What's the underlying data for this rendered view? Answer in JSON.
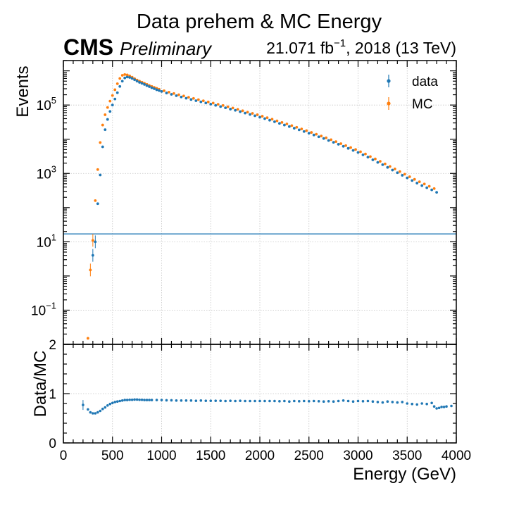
{
  "figure": {
    "title": "Data prehem & MC Energy",
    "experiment": "CMS",
    "status": "Preliminary",
    "lumi_prefix": "21.071 fb",
    "lumi_exp": "−1",
    "lumi_suffix": ", 2018 (13 TeV)"
  },
  "chart_data": [
    {
      "type": "scatter",
      "panel": "main",
      "xlabel": "",
      "ylabel": "Events",
      "yscale": "log",
      "xlim": [
        0,
        4000
      ],
      "ylim": [
        0.01,
        2000000
      ],
      "grid": true,
      "legend_position": "top-right",
      "yticks": [
        {
          "exp": "−1",
          "v": 0.1
        },
        {
          "exp": "1",
          "v": 10
        },
        {
          "exp": "3",
          "v": 1000
        },
        {
          "exp": "5",
          "v": 100000
        }
      ],
      "extra_ytick": {
        "label": "2",
        "v": 0.01
      },
      "hline": 17,
      "colors": {
        "data": "#1f77b4",
        "MC": "#ff7f0e"
      },
      "x": [
        300,
        325,
        350,
        375,
        400,
        425,
        450,
        475,
        500,
        525,
        550,
        575,
        600,
        625,
        650,
        675,
        700,
        725,
        750,
        775,
        800,
        825,
        850,
        875,
        900,
        925,
        950,
        975,
        1000,
        1050,
        1100,
        1150,
        1200,
        1250,
        1300,
        1350,
        1400,
        1450,
        1500,
        1550,
        1600,
        1650,
        1700,
        1750,
        1800,
        1850,
        1900,
        1950,
        2000,
        2050,
        2100,
        2150,
        2200,
        2250,
        2300,
        2350,
        2400,
        2450,
        2500,
        2550,
        2600,
        2650,
        2700,
        2750,
        2800,
        2850,
        2900,
        2950,
        3000,
        3050,
        3100,
        3150,
        3200,
        3250,
        3300,
        3350,
        3400,
        3450,
        3500,
        3550,
        3600,
        3650,
        3700,
        3750,
        3800
      ],
      "series": [
        {
          "name": "data",
          "values": [
            4,
            10,
            130,
            900,
            6000,
            19000,
            38000,
            65000,
            100000,
            150000,
            230000,
            350000,
            500000,
            620000,
            660000,
            640000,
            600000,
            550000,
            500000,
            460000,
            430000,
            400000,
            370000,
            345000,
            320000,
            300000,
            280000,
            265000,
            250000,
            225000,
            205000,
            188000,
            172000,
            158000,
            145000,
            134000,
            124000,
            115000,
            106000,
            98000,
            90000,
            83000,
            76000,
            70000,
            64000,
            58000,
            53000,
            48500,
            44000,
            40000,
            36000,
            32500,
            29000,
            26000,
            23500,
            21000,
            18800,
            16800,
            15000,
            13300,
            11800,
            10500,
            9200,
            8100,
            7100,
            6200,
            5400,
            4700,
            4100,
            3500,
            3000,
            2500,
            2100,
            1800,
            1500,
            1250,
            1050,
            880,
            740,
            620,
            520,
            440,
            380,
            330,
            280
          ]
        },
        {
          "name": "MC",
          "x_offset": -25,
          "values": [
            1.5,
            11,
            160,
            1300,
            8000,
            26000,
            52000,
            85000,
            130000,
            190000,
            280000,
            420000,
            600000,
            740000,
            780000,
            760000,
            710000,
            650000,
            590000,
            540000,
            500000,
            465000,
            432000,
            402000,
            374000,
            350000,
            328000,
            308000,
            290000,
            262000,
            238000,
            218000,
            200000,
            184000,
            169000,
            156000,
            144000,
            133000,
            123000,
            114000,
            105000,
            97000,
            89000,
            82000,
            75000,
            68000,
            62000,
            57000,
            52000,
            47000,
            42500,
            38500,
            34500,
            31000,
            28000,
            25000,
            22300,
            20000,
            17800,
            15800,
            14000,
            12400,
            11000,
            9700,
            8500,
            7400,
            6500,
            5700,
            5000,
            4300,
            3700,
            3100,
            2650,
            2250,
            1900,
            1600,
            1350,
            1130,
            950,
            800,
            670,
            570,
            490,
            420,
            360
          ]
        }
      ],
      "extra_points": [
        {
          "series": "MC",
          "x": 250,
          "y": 0.015
        }
      ]
    },
    {
      "type": "scatter",
      "panel": "ratio",
      "xlabel": "Energy (GeV)",
      "ylabel": "Data/MC",
      "xlim": [
        0,
        4000
      ],
      "ylim": [
        0,
        2
      ],
      "grid": true,
      "xticks": [
        "0",
        "500",
        "1000",
        "1500",
        "2000",
        "2500",
        "3000",
        "3500",
        "4000"
      ],
      "yticks": [
        "0",
        "1",
        "2"
      ],
      "ratio_points": [
        [
          200,
          0.77
        ],
        [
          250,
          0.68
        ],
        [
          275,
          0.62
        ],
        [
          300,
          0.6
        ],
        [
          325,
          0.6
        ],
        [
          350,
          0.62
        ],
        [
          375,
          0.65
        ],
        [
          400,
          0.69
        ],
        [
          425,
          0.72
        ],
        [
          450,
          0.76
        ],
        [
          475,
          0.79
        ],
        [
          500,
          0.81
        ],
        [
          525,
          0.83
        ],
        [
          550,
          0.84
        ],
        [
          575,
          0.85
        ],
        [
          600,
          0.86
        ],
        [
          625,
          0.87
        ],
        [
          650,
          0.87
        ],
        [
          675,
          0.875
        ],
        [
          700,
          0.875
        ],
        [
          725,
          0.88
        ],
        [
          750,
          0.88
        ],
        [
          775,
          0.875
        ],
        [
          800,
          0.875
        ],
        [
          825,
          0.87
        ],
        [
          850,
          0.87
        ],
        [
          875,
          0.87
        ],
        [
          900,
          0.87
        ],
        [
          950,
          0.87
        ],
        [
          1000,
          0.87
        ],
        [
          1050,
          0.865
        ],
        [
          1100,
          0.865
        ],
        [
          1150,
          0.86
        ],
        [
          1200,
          0.86
        ],
        [
          1250,
          0.86
        ],
        [
          1300,
          0.86
        ],
        [
          1350,
          0.855
        ],
        [
          1400,
          0.86
        ],
        [
          1450,
          0.855
        ],
        [
          1500,
          0.855
        ],
        [
          1550,
          0.855
        ],
        [
          1600,
          0.855
        ],
        [
          1650,
          0.85
        ],
        [
          1700,
          0.855
        ],
        [
          1750,
          0.85
        ],
        [
          1800,
          0.855
        ],
        [
          1850,
          0.85
        ],
        [
          1900,
          0.85
        ],
        [
          1950,
          0.85
        ],
        [
          2000,
          0.85
        ],
        [
          2050,
          0.85
        ],
        [
          2100,
          0.85
        ],
        [
          2150,
          0.85
        ],
        [
          2200,
          0.845
        ],
        [
          2250,
          0.85
        ],
        [
          2300,
          0.84
        ],
        [
          2350,
          0.85
        ],
        [
          2400,
          0.845
        ],
        [
          2450,
          0.85
        ],
        [
          2500,
          0.845
        ],
        [
          2550,
          0.85
        ],
        [
          2600,
          0.845
        ],
        [
          2650,
          0.84
        ],
        [
          2700,
          0.845
        ],
        [
          2750,
          0.84
        ],
        [
          2800,
          0.85
        ],
        [
          2850,
          0.86
        ],
        [
          2900,
          0.85
        ],
        [
          2950,
          0.84
        ],
        [
          3000,
          0.85
        ],
        [
          3050,
          0.845
        ],
        [
          3100,
          0.85
        ],
        [
          3150,
          0.84
        ],
        [
          3200,
          0.83
        ],
        [
          3250,
          0.82
        ],
        [
          3300,
          0.84
        ],
        [
          3350,
          0.83
        ],
        [
          3400,
          0.82
        ],
        [
          3450,
          0.83
        ],
        [
          3500,
          0.8
        ],
        [
          3550,
          0.79
        ],
        [
          3600,
          0.78
        ],
        [
          3650,
          0.8
        ],
        [
          3700,
          0.79
        ],
        [
          3750,
          0.81
        ],
        [
          3775,
          0.74
        ],
        [
          3800,
          0.7
        ],
        [
          3825,
          0.71
        ],
        [
          3850,
          0.73
        ],
        [
          3875,
          0.73
        ],
        [
          3900,
          0.74
        ],
        [
          3950,
          0.75
        ]
      ]
    }
  ]
}
